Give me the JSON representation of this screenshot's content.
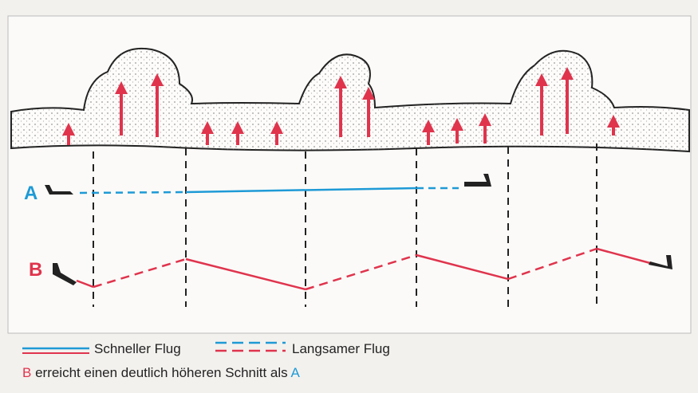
{
  "labels": {
    "a": "A",
    "b": "B"
  },
  "legend": [
    {
      "label": "Schneller Flug"
    },
    {
      "label": "Langsamer Flug"
    }
  ],
  "caption": {
    "subject": "B",
    "text": "erreicht einen deutlich höheren Schnitt als",
    "object": "A"
  }
}
